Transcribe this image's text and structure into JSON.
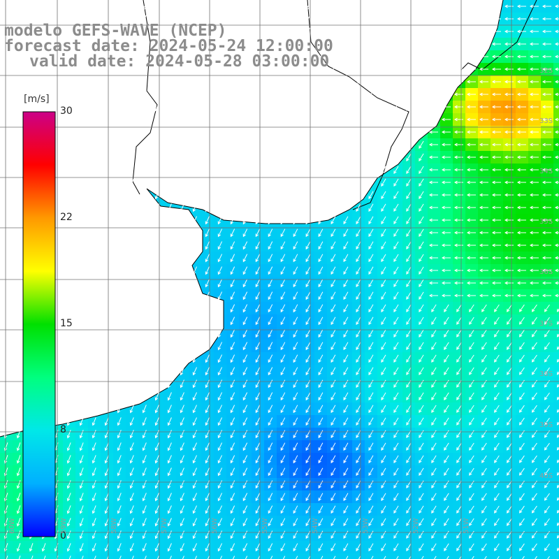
{
  "title": {
    "model": "modelo GEFS-WAVE (NCEP)",
    "forecast": "forecast date: 2024-05-24 12:00:00",
    "valid": "valid date: 2024-05-28 03:00:00"
  },
  "colorbar": {
    "unit": "[m/s]",
    "ticks": [
      "30",
      "22",
      "15",
      "8",
      "0"
    ],
    "range": [
      0,
      30
    ],
    "colors": [
      "#0000ff",
      "#00b0ff",
      "#00e8e8",
      "#00ff7f",
      "#00e000",
      "#ffff00",
      "#ff9900",
      "#ff0000",
      "#cc0088"
    ]
  },
  "grid": {
    "lat_labels": [
      "32S",
      "33S",
      "34S",
      "35S",
      "36S",
      "37S",
      "38S",
      "39S",
      "40S"
    ],
    "lon_labels": [
      "60W",
      "59W",
      "58W",
      "57W",
      "56W",
      "55W",
      "54W",
      "53W",
      "52W",
      "51W"
    ]
  },
  "colors": {
    "land": "#ffffff",
    "coast": "#000000",
    "grid": "#707070",
    "arrow": "#ffffff"
  }
}
